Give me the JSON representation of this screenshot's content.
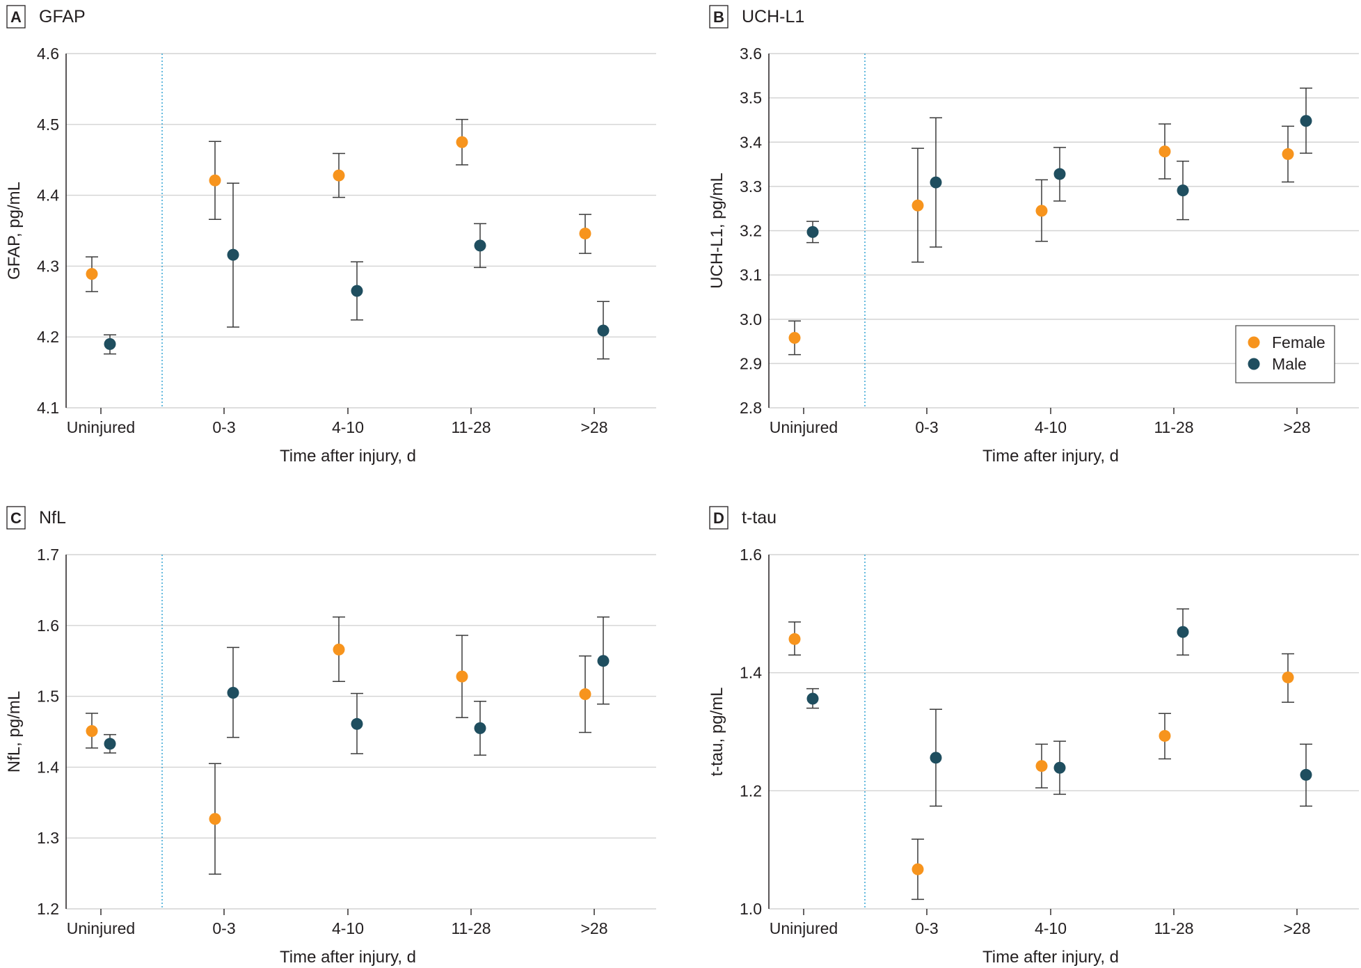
{
  "colors": {
    "female": "#f7941d",
    "male": "#1f4e5f",
    "grid": "#d3d3d3",
    "axis": "#231f20",
    "divider": "#3fa9d6"
  },
  "legend": {
    "female": "Female",
    "male": "Male",
    "placement": "bottom-right",
    "panel": 1
  },
  "chart_data": [
    {
      "type": "scatter",
      "letter": "A",
      "title": "GFAP",
      "xlabel": "Time after injury, d",
      "ylabel": "GFAP, pg/mL",
      "categories": [
        "Uninjured",
        "0-3",
        "4-10",
        "11-28",
        ">28"
      ],
      "ylim": [
        4.1,
        4.6
      ],
      "yticks": [
        "4.1",
        "4.2",
        "4.3",
        "4.4",
        "4.5",
        "4.6"
      ],
      "grid": true,
      "series": [
        {
          "name": "Female",
          "values": [
            4.289,
            4.421,
            4.428,
            4.475,
            4.346
          ],
          "lower": [
            4.264,
            4.366,
            4.397,
            4.443,
            4.318
          ],
          "upper": [
            4.313,
            4.476,
            4.459,
            4.507,
            4.373
          ]
        },
        {
          "name": "Male",
          "values": [
            4.19,
            4.316,
            4.265,
            4.329,
            4.209
          ],
          "lower": [
            4.176,
            4.214,
            4.224,
            4.298,
            4.169
          ],
          "upper": [
            4.203,
            4.417,
            4.306,
            4.36,
            4.25
          ]
        }
      ]
    },
    {
      "type": "scatter",
      "letter": "B",
      "title": "UCH-L1",
      "xlabel": "Time after injury, d",
      "ylabel": "UCH-L1, pg/mL",
      "categories": [
        "Uninjured",
        "0-3",
        "4-10",
        "11-28",
        ">28"
      ],
      "ylim": [
        2.8,
        3.6
      ],
      "yticks": [
        "2.8",
        "2.9",
        "3.0",
        "3.1",
        "3.2",
        "3.3",
        "3.4",
        "3.5",
        "3.6"
      ],
      "grid": true,
      "series": [
        {
          "name": "Female",
          "values": [
            2.958,
            3.257,
            3.245,
            3.379,
            3.373
          ],
          "lower": [
            2.92,
            3.129,
            3.176,
            3.317,
            3.31
          ],
          "upper": [
            2.996,
            3.386,
            3.315,
            3.441,
            3.436
          ]
        },
        {
          "name": "Male",
          "values": [
            3.197,
            3.309,
            3.328,
            3.291,
            3.448
          ],
          "lower": [
            3.173,
            3.163,
            3.267,
            3.225,
            3.375
          ],
          "upper": [
            3.221,
            3.455,
            3.388,
            3.357,
            3.522
          ]
        }
      ]
    },
    {
      "type": "scatter",
      "letter": "C",
      "title": "NfL",
      "xlabel": "Time after injury, d",
      "ylabel": "NfL, pg/mL",
      "categories": [
        "Uninjured",
        "0-3",
        "4-10",
        "11-28",
        ">28"
      ],
      "ylim": [
        1.2,
        1.7
      ],
      "yticks": [
        "1.2",
        "1.3",
        "1.4",
        "1.5",
        "1.6",
        "1.7"
      ],
      "grid": true,
      "series": [
        {
          "name": "Female",
          "values": [
            1.451,
            1.327,
            1.566,
            1.528,
            1.503
          ],
          "lower": [
            1.427,
            1.249,
            1.521,
            1.47,
            1.449
          ],
          "upper": [
            1.476,
            1.405,
            1.612,
            1.586,
            1.557
          ]
        },
        {
          "name": "Male",
          "values": [
            1.433,
            1.505,
            1.461,
            1.455,
            1.55
          ],
          "lower": [
            1.42,
            1.442,
            1.419,
            1.417,
            1.489
          ],
          "upper": [
            1.446,
            1.569,
            1.504,
            1.493,
            1.612
          ]
        }
      ]
    },
    {
      "type": "scatter",
      "letter": "D",
      "title": "t-tau",
      "xlabel": "Time after injury, d",
      "ylabel": "t-tau, pg/mL",
      "categories": [
        "Uninjured",
        "0-3",
        "4-10",
        "11-28",
        ">28"
      ],
      "ylim": [
        1.0,
        1.6
      ],
      "yticks": [
        "1.0",
        "1.2",
        "1.4",
        "1.6"
      ],
      "grid": true,
      "series": [
        {
          "name": "Female",
          "values": [
            1.457,
            1.067,
            1.242,
            1.293,
            1.392
          ],
          "lower": [
            1.43,
            1.016,
            1.205,
            1.254,
            1.35
          ],
          "upper": [
            1.486,
            1.118,
            1.279,
            1.331,
            1.432
          ]
        },
        {
          "name": "Male",
          "values": [
            1.356,
            1.256,
            1.239,
            1.469,
            1.227
          ],
          "lower": [
            1.34,
            1.174,
            1.194,
            1.43,
            1.174
          ],
          "upper": [
            1.373,
            1.338,
            1.284,
            1.508,
            1.279
          ]
        }
      ]
    }
  ]
}
